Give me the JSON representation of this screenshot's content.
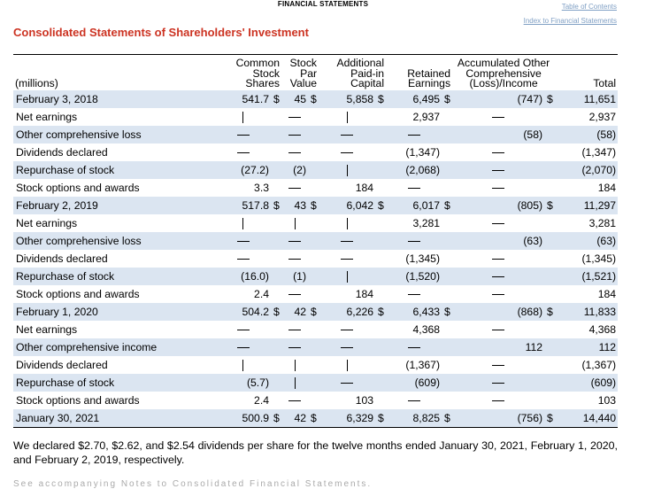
{
  "header": {
    "section": "FINANCIAL STATEMENTS",
    "toc_link": "Table of Contents",
    "index_link": "Index to Financial Statements"
  },
  "title": "Consolidated Statements of Shareholders' Investment",
  "columns": {
    "label": "(millions)",
    "shares": [
      "Common",
      "Stock",
      "Shares"
    ],
    "par": [
      "Stock",
      "Par",
      "Value"
    ],
    "apic": [
      "Additional",
      "Paid-in",
      "Capital"
    ],
    "retained": [
      "Retained",
      "Earnings"
    ],
    "aoci": [
      "Accumulated Other",
      "Comprehensive",
      "(Loss)/Income"
    ],
    "total": "Total"
  },
  "rows": [
    {
      "label": "February 3, 2018",
      "type": "balance",
      "shares": "541.7",
      "par": "45",
      "apic": "5,858",
      "re": "6,495",
      "aoci": "(747)",
      "total": "11,651"
    },
    {
      "label": "Net earnings",
      "type": "activity",
      "shares": "|",
      "par": "—",
      "apic": "|",
      "re": "2,937",
      "aoci": "—",
      "total": "2,937"
    },
    {
      "label": "Other comprehensive loss",
      "type": "activity",
      "shares": "—",
      "par": "—",
      "apic": "—",
      "re": "—",
      "aoci": "(58)",
      "total": "(58)"
    },
    {
      "label": "Dividends declared",
      "type": "activity",
      "shares": "—",
      "par": "—",
      "apic": "—",
      "re": "(1,347)",
      "aoci": "—",
      "total": "(1,347)"
    },
    {
      "label": "Repurchase of stock",
      "type": "activity",
      "shares": "(27.2)",
      "par": "(2)",
      "apic": "|",
      "re": "(2,068)",
      "aoci": "—",
      "total": "(2,070)"
    },
    {
      "label": "Stock options and awards",
      "type": "activity",
      "shares": "3.3",
      "par": "—",
      "apic": "184",
      "re": "—",
      "aoci": "—",
      "total": "184"
    },
    {
      "label": "February 2, 2019",
      "type": "balance",
      "shares": "517.8",
      "par": "43",
      "apic": "6,042",
      "re": "6,017",
      "aoci": "(805)",
      "total": "11,297"
    },
    {
      "label": "Net earnings",
      "type": "activity",
      "shares": "|",
      "par": "|",
      "apic": "|",
      "re": "3,281",
      "aoci": "—",
      "total": "3,281"
    },
    {
      "label": "Other comprehensive loss",
      "type": "activity",
      "shares": "—",
      "par": "—",
      "apic": "—",
      "re": "—",
      "aoci": "(63)",
      "total": "(63)"
    },
    {
      "label": "Dividends declared",
      "type": "activity",
      "shares": "—",
      "par": "—",
      "apic": "—",
      "re": "(1,345)",
      "aoci": "—",
      "total": "(1,345)"
    },
    {
      "label": "Repurchase of stock",
      "type": "activity",
      "shares": "(16.0)",
      "par": "(1)",
      "apic": "|",
      "re": "(1,520)",
      "aoci": "—",
      "total": "(1,521)"
    },
    {
      "label": "Stock options and awards",
      "type": "activity",
      "shares": "2.4",
      "par": "—",
      "apic": "184",
      "re": "—",
      "aoci": "—",
      "total": "184"
    },
    {
      "label": "February 1, 2020",
      "type": "balance",
      "shares": "504.2",
      "par": "42",
      "apic": "6,226",
      "re": "6,433",
      "aoci": "(868)",
      "total": "11,833"
    },
    {
      "label": "Net earnings",
      "type": "activity",
      "shares": "—",
      "par": "—",
      "apic": "—",
      "re": "4,368",
      "aoci": "—",
      "total": "4,368"
    },
    {
      "label": "Other comprehensive income",
      "type": "activity",
      "shares": "—",
      "par": "—",
      "apic": "—",
      "re": "—",
      "aoci": "112",
      "total": "112"
    },
    {
      "label": "Dividends declared",
      "type": "activity",
      "shares": "|",
      "par": "|",
      "apic": "|",
      "re": "(1,367)",
      "aoci": "—",
      "total": "(1,367)"
    },
    {
      "label": "Repurchase of stock",
      "type": "activity",
      "shares": "(5.7)",
      "par": "|",
      "apic": "—",
      "re": "(609)",
      "aoci": "—",
      "total": "(609)"
    },
    {
      "label": "Stock options and awards",
      "type": "activity",
      "shares": "2.4",
      "par": "—",
      "apic": "103",
      "re": "—",
      "aoci": "—",
      "total": "103"
    },
    {
      "label": "January 30, 2021",
      "type": "final",
      "shares": "500.9",
      "par": "42",
      "apic": "6,329",
      "re": "8,825",
      "aoci": "(756)",
      "total": "14,440"
    }
  ],
  "currency": "$",
  "note": "We declared $2.70, $2.62, and $2.54 dividends per share for the twelve months ended January 30, 2021, February 1, 2020, and February 2, 2019, respectively.",
  "footer_partial": "See accompanying Notes to Consolidated Financial Statements."
}
